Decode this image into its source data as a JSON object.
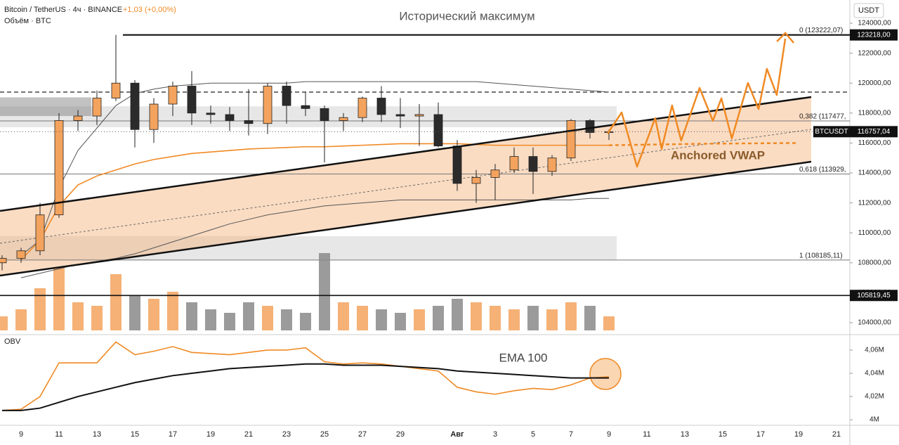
{
  "chart_data": [
    {
      "type": "candlestick",
      "title": "Bitcoin / TetherUS · 4ч · BINANCE",
      "change": "+1,03 (+0,00%)",
      "volume_title": "Объём · BTC",
      "currency": "USDT",
      "symbol": "BTCUSDT",
      "ylim": [
        103250,
        125550
      ],
      "yticks": [
        {
          "value": 104000,
          "label": "104000,00"
        },
        {
          "value": 106000,
          "label": "106000,00"
        },
        {
          "value": 108000,
          "label": "108000,00"
        },
        {
          "value": 110000,
          "label": "110000,00"
        },
        {
          "value": 112000,
          "label": "112000,00"
        },
        {
          "value": 114000,
          "label": "114000,00"
        },
        {
          "value": 116000,
          "label": "116000,00"
        },
        {
          "value": 118000,
          "label": "118000,00"
        },
        {
          "value": 120000,
          "label": "120000,00"
        },
        {
          "value": 122000,
          "label": "122000,00"
        },
        {
          "value": 124000,
          "label": "124000,00"
        }
      ],
      "up_color": "#f3a35e",
      "down_color": "#2b2b2b",
      "open": [
        108000,
        108300,
        108800,
        111200,
        117500,
        117800,
        119000,
        120000,
        116900,
        118600,
        119800,
        118000,
        117900,
        117500,
        117300,
        119800,
        118500,
        118300,
        117500,
        117700,
        119000,
        117900,
        117800,
        117900,
        115800,
        113300,
        113700,
        114200,
        115100,
        114100,
        115000,
        117500,
        116700,
        null,
        null,
        null,
        null,
        null,
        null,
        null,
        null,
        null,
        null,
        null,
        null
      ],
      "high": [
        108500,
        109000,
        112000,
        118000,
        118200,
        119500,
        123218,
        120200,
        119000,
        120100,
        120800,
        118500,
        118400,
        119600,
        120000,
        120100,
        119400,
        118500,
        118000,
        119100,
        119800,
        119000,
        118600,
        118700,
        116200,
        114200,
        114600,
        115700,
        115700,
        115200,
        117600,
        117600,
        116900,
        null,
        null,
        null,
        null,
        null,
        null,
        null,
        null,
        null,
        null,
        null,
        null
      ],
      "low": [
        107500,
        108000,
        108500,
        111000,
        116800,
        117200,
        118800,
        115700,
        116000,
        117800,
        117200,
        117300,
        116800,
        116500,
        116600,
        117300,
        117800,
        114700,
        116800,
        117400,
        117400,
        117000,
        115800,
        115700,
        112800,
        112000,
        112200,
        114000,
        112600,
        113800,
        114800,
        116300,
        116200,
        null,
        null,
        null,
        null,
        null,
        null,
        null,
        null,
        null,
        null,
        null,
        null
      ],
      "close": [
        108300,
        108800,
        111200,
        117500,
        117800,
        119000,
        120000,
        116900,
        118600,
        119800,
        118000,
        117900,
        117500,
        117300,
        119800,
        118500,
        118300,
        117500,
        117700,
        119000,
        117900,
        117800,
        117900,
        115800,
        113300,
        113700,
        114200,
        115100,
        114100,
        115000,
        117500,
        116700,
        116757.04,
        null,
        null,
        null,
        null,
        null,
        null,
        null,
        null,
        null,
        null,
        null,
        null
      ],
      "volume": [
        20,
        30,
        60,
        90,
        40,
        35,
        80,
        50,
        45,
        55,
        40,
        30,
        25,
        40,
        35,
        30,
        25,
        110,
        40,
        35,
        30,
        25,
        30,
        35,
        45,
        40,
        35,
        30,
        35,
        30,
        40,
        35,
        20,
        null,
        null,
        null,
        null,
        null,
        null,
        null,
        null,
        null,
        null,
        null,
        null
      ],
      "vlim": [
        0,
        130
      ],
      "series": [
        {
          "name": "Anchored VWAP",
          "color": "#f08a24",
          "values": [
            null,
            108200,
            109500,
            111800,
            113200,
            113800,
            114200,
            114600,
            114900,
            115100,
            115300,
            115400,
            115500,
            115600,
            115650,
            115700,
            115750,
            115750,
            115800,
            115850,
            115900,
            115950,
            115950,
            115950,
            115950,
            115900,
            115850,
            115850,
            115850,
            115850,
            115850,
            115850,
            115850,
            null,
            null,
            null,
            null,
            null,
            null,
            null,
            null,
            null,
            null,
            null,
            null
          ]
        },
        {
          "color": "#f08a24",
          "dashed": true,
          "values": [
            null,
            null,
            null,
            null,
            null,
            null,
            null,
            null,
            null,
            null,
            null,
            null,
            null,
            null,
            null,
            null,
            null,
            null,
            null,
            null,
            null,
            null,
            null,
            null,
            null,
            null,
            null,
            null,
            null,
            null,
            null,
            null,
            115850,
            115870,
            115890,
            115910,
            115930,
            115950,
            115960,
            115970,
            115980,
            115990,
            116000,
            null,
            null
          ]
        },
        {
          "color": "#555555",
          "values": [
            null,
            108500,
            109500,
            113000,
            115500,
            117000,
            118500,
            119300,
            119600,
            119800,
            119900,
            120000,
            120000,
            120000,
            120000,
            120000,
            120100,
            120100,
            120100,
            120100,
            120100,
            120100,
            120100,
            120100,
            120100,
            120100,
            120000,
            119900,
            119800,
            119700,
            119600,
            119500,
            119400,
            null,
            null,
            null,
            null,
            null,
            null,
            null,
            null,
            null,
            null,
            null,
            null
          ]
        },
        {
          "color": "#555555",
          "values": [
            null,
            107000,
            107300,
            107600,
            107900,
            108100,
            108300,
            108600,
            109000,
            109400,
            109800,
            110200,
            110600,
            110900,
            111200,
            111400,
            111600,
            111800,
            111900,
            112000,
            112100,
            112200,
            112200,
            112200,
            112200,
            112200,
            112200,
            112200,
            112200,
            112200,
            112200,
            112300,
            112300,
            null,
            null,
            null,
            null,
            null,
            null,
            null,
            null,
            null,
            null,
            null,
            null
          ]
        }
      ],
      "channel": {
        "upper": [
          111465,
          119070
        ],
        "lower": [
          107145,
          114750
        ],
        "color": "#f5b27a"
      },
      "zones": [
        [
          117050,
          118450
        ],
        [
          108200,
          109780
        ],
        [
          117800,
          119050
        ]
      ],
      "resistance": 119400,
      "fib_levels": [
        {
          "value": 123222.07,
          "label": "0 (123222,07)"
        },
        {
          "value": 117477,
          "label": "0,382 (117477,"
        },
        {
          "value": 113929,
          "label": "0,618 (113929,"
        },
        {
          "value": 108185.11,
          "label": "1 (108185,11)"
        }
      ],
      "price_labels": [
        {
          "value": 123218,
          "label": "123218,00"
        },
        {
          "value": 116757.04,
          "label": "116757,04"
        },
        {
          "value": 105819.45,
          "label": "105819,45"
        }
      ],
      "projection": {
        "x": [
          8.93,
          9.67,
          10.48,
          11.44,
          11.78,
          12.33,
          12.81,
          13.78,
          14.48,
          14.93,
          15.48,
          16.33,
          16.89,
          17.33,
          17.85,
          18.3
        ],
        "values": [
          116630,
          118040,
          114420,
          117660,
          115600,
          118510,
          116160,
          119680,
          117480,
          118980,
          116300,
          120010,
          118270,
          120950,
          119210,
          122970
        ],
        "color": "#f08a24"
      },
      "annotations": [
        "Исторический максимум",
        "Anchored VWAP"
      ]
    },
    {
      "type": "line",
      "categories": [
        null,
        "9",
        null,
        "11",
        null,
        "13",
        null,
        "15",
        null,
        "17",
        null,
        "19",
        null,
        "21",
        null,
        "23",
        null,
        "25",
        null,
        "27",
        null,
        "29",
        null,
        null,
        "Авг",
        null,
        "3",
        null,
        "5",
        null,
        "7",
        null,
        "9",
        null,
        "11",
        null,
        "13",
        null,
        "15",
        null,
        "17",
        null,
        "19",
        null,
        "21"
      ],
      "ylim": [
        3.9952,
        4.0721
      ],
      "yticks": [
        {
          "value": 4,
          "label": "4M"
        },
        {
          "value": 4.02,
          "label": "4,02M"
        },
        {
          "value": 4.04,
          "label": "4,04M"
        },
        {
          "value": 4.06,
          "label": "4,06M"
        }
      ],
      "series": [
        {
          "name": "OBV",
          "color": "#f08a24",
          "values": [
            4.008,
            4.009,
            4.02,
            4.049,
            4.049,
            4.049,
            4.067,
            4.056,
            4.059,
            4.063,
            4.058,
            4.057,
            4.056,
            4.058,
            4.06,
            4.06,
            4.062,
            4.05,
            4.048,
            4.049,
            4.048,
            4.046,
            4.044,
            4.042,
            4.028,
            4.024,
            4.022,
            4.025,
            4.027,
            4.026,
            4.03,
            4.036,
            4.037,
            null,
            null,
            null,
            null,
            null,
            null,
            null,
            null,
            null,
            null,
            null,
            null
          ]
        },
        {
          "name": "EMA 100",
          "color": "#111111",
          "values": [
            4.008,
            4.008,
            4.01,
            4.015,
            4.02,
            4.024,
            4.028,
            4.032,
            4.035,
            4.038,
            4.04,
            4.042,
            4.044,
            4.045,
            4.046,
            4.047,
            4.048,
            4.048,
            4.047,
            4.047,
            4.047,
            4.046,
            4.045,
            4.044,
            4.042,
            4.041,
            4.04,
            4.039,
            4.038,
            4.037,
            4.036,
            4.036,
            4.036,
            null,
            null,
            null,
            null,
            null,
            null,
            null,
            null,
            null,
            null,
            null,
            null
          ]
        }
      ]
    }
  ]
}
